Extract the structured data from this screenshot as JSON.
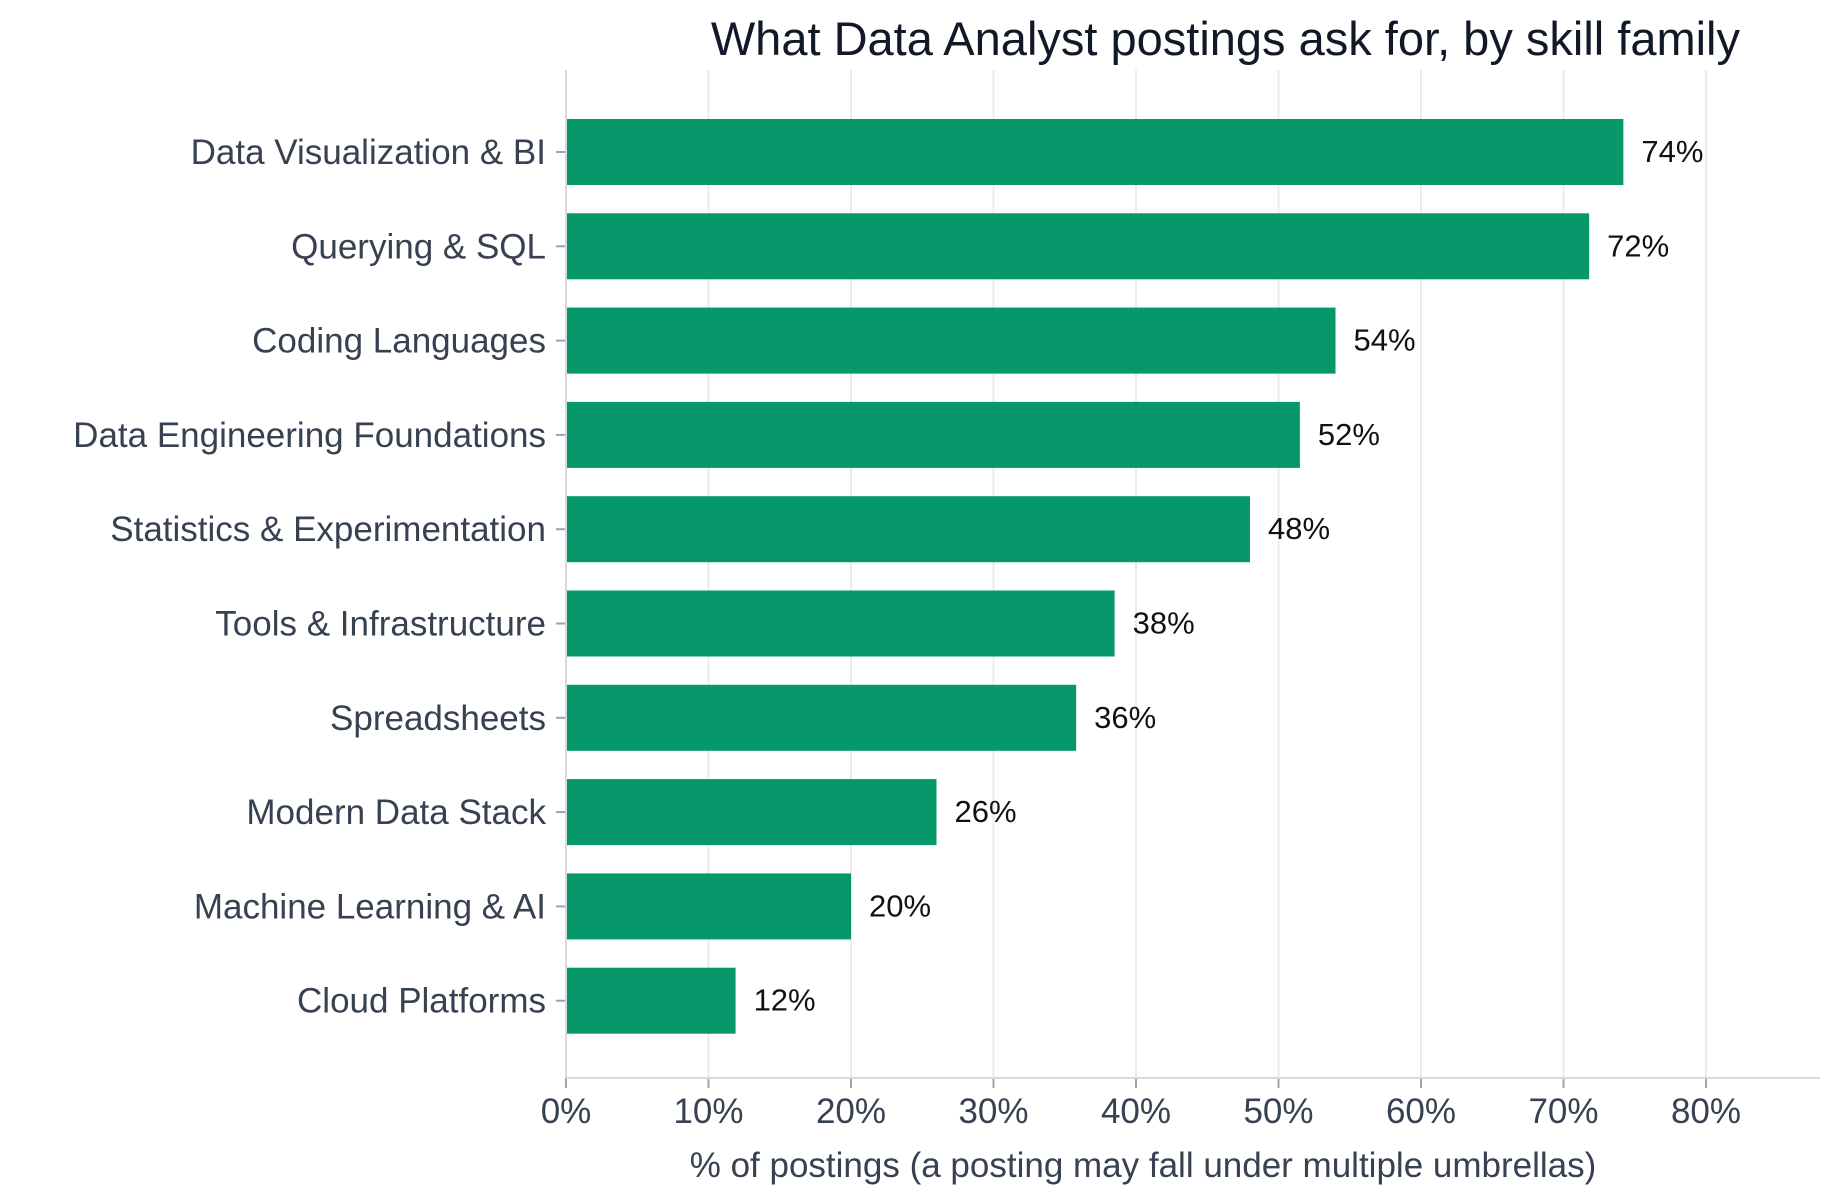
{
  "chart_data": {
    "type": "bar",
    "orientation": "horizontal",
    "title": "What Data Analyst postings ask for, by skill family",
    "xlabel": "% of postings (a posting may fall under multiple umbrellas)",
    "ylabel": "",
    "categories": [
      "Data Visualization & BI",
      "Querying & SQL",
      "Coding Languages",
      "Data Engineering Foundations",
      "Statistics & Experimentation",
      "Tools & Infrastructure",
      "Spreadsheets",
      "Modern Data Stack",
      "Machine Learning & AI",
      "Cloud Platforms"
    ],
    "values": [
      74.2,
      71.8,
      54.0,
      51.5,
      48.0,
      38.5,
      35.8,
      26.0,
      20.0,
      11.9
    ],
    "value_labels": [
      "74%",
      "72%",
      "54%",
      "52%",
      "48%",
      "38%",
      "36%",
      "26%",
      "20%",
      "12%"
    ],
    "xlim": [
      0,
      88
    ],
    "xticks": [
      0,
      10,
      20,
      30,
      40,
      50,
      60,
      70,
      80
    ],
    "xtick_labels": [
      "0%",
      "10%",
      "20%",
      "30%",
      "40%",
      "50%",
      "60%",
      "70%",
      "80%"
    ],
    "grid": "vertical",
    "legend": "none",
    "bar_color": "#06976a"
  }
}
